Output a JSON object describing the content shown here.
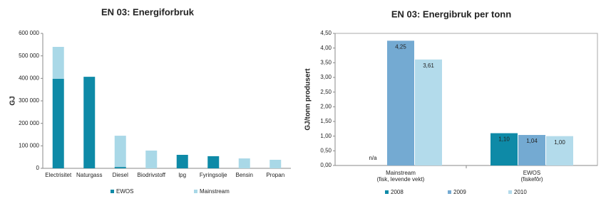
{
  "chart_data": [
    {
      "type": "stacked_bar",
      "title": "EN 03: Energiforbruk",
      "y_label": "GJ",
      "categories": [
        "Electrisitet",
        "Naturgass",
        "Diesel",
        "Biodrivstoff",
        "lpg",
        "Fyringsolje",
        "Bensin",
        "Propan"
      ],
      "series": [
        {
          "name": "EWOS",
          "color": "#0e8aa7",
          "values": [
            398000,
            407000,
            6000,
            0,
            60000,
            54000,
            0,
            0
          ]
        },
        {
          "name": "Mainstream",
          "color": "#a9d8e7",
          "values": [
            142000,
            0,
            139000,
            79000,
            0,
            0,
            44000,
            38000
          ]
        }
      ],
      "ylim": [
        0,
        600000
      ],
      "yticks": [
        0,
        {
          "value": 100000,
          "label": "100 000"
        },
        {
          "value": 200000,
          "label": "200 000"
        },
        {
          "value": 300000,
          "label": "300 000"
        },
        {
          "value": 400000,
          "label": "400 000"
        },
        {
          "value": 500000,
          "label": "500 000"
        },
        {
          "value": 600000,
          "label": "600 000"
        }
      ],
      "grid": false,
      "legend": "bottom"
    },
    {
      "type": "grouped_bar",
      "title": "EN 03: Energibruk per tonn",
      "y_label": "GJ/tonn produsert",
      "categories": [
        [
          "Mainstream",
          "(fisk, levende vekt)"
        ],
        [
          "EWOS",
          "(fiskefôr)"
        ]
      ],
      "series": [
        {
          "name": "2008",
          "color": "#0e8aa7",
          "values": [
            null,
            1.1
          ],
          "value_labels": [
            "n/a",
            "1,10"
          ]
        },
        {
          "name": "2009",
          "color": "#74aad2",
          "values": [
            4.25,
            1.04
          ],
          "value_labels": [
            "4,25",
            "1,04"
          ]
        },
        {
          "name": "2010",
          "color": "#b3dbeb",
          "values": [
            3.61,
            1.0
          ],
          "value_labels": [
            "3,61",
            "1,00"
          ]
        }
      ],
      "ylim": [
        0,
        4.5
      ],
      "yticks": [
        {
          "value": 0,
          "label": "0,00"
        },
        {
          "value": 0.5,
          "label": "0,50"
        },
        {
          "value": 1,
          "label": "1,00"
        },
        {
          "value": 1.5,
          "label": "1,50"
        },
        {
          "value": 2,
          "label": "2,00"
        },
        {
          "value": 2.5,
          "label": "2,50"
        },
        {
          "value": 3,
          "label": "3,00"
        },
        {
          "value": 3.5,
          "label": "3,50"
        },
        {
          "value": 4,
          "label": "4,00"
        },
        {
          "value": 4.5,
          "label": "4,50"
        }
      ],
      "grid": false,
      "legend": "bottom"
    }
  ]
}
